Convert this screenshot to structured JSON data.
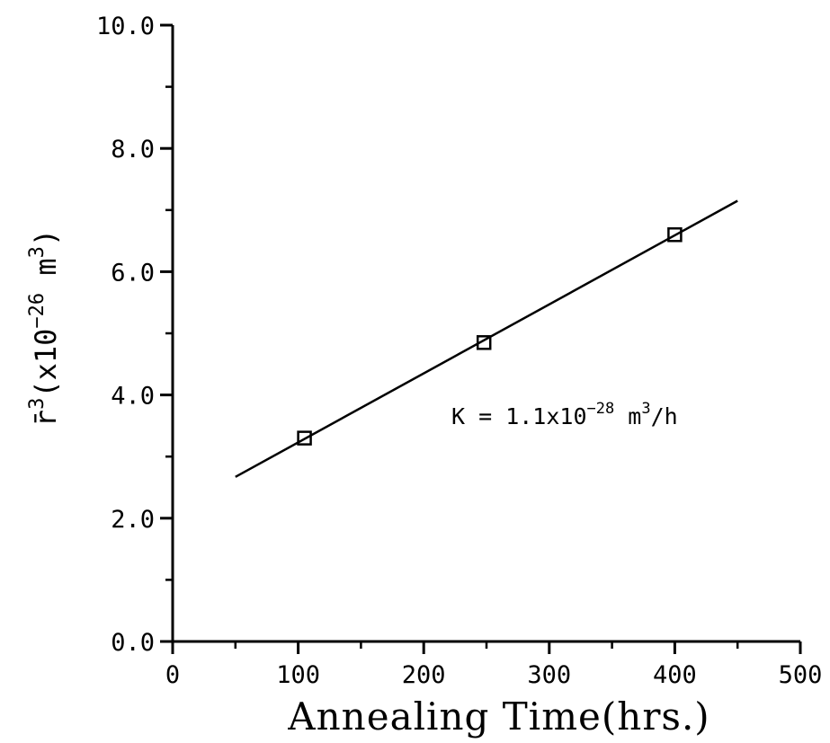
{
  "chart_data": {
    "type": "scatter",
    "xlabel": "Annealing Time(hrs.)",
    "ylabel": {
      "prefix": "r̄",
      "exp1": "3",
      "open": "(x10",
      "exp2": "−26",
      "unit": " m",
      "exp3": "3",
      "close": ")"
    },
    "xlim": [
      0,
      500
    ],
    "ylim": [
      0.0,
      10.0
    ],
    "x_ticks": [
      "0",
      "100",
      "200",
      "300",
      "400",
      "500"
    ],
    "y_ticks": [
      "0.0",
      "2.0",
      "4.0",
      "6.0",
      "8.0",
      "10.0"
    ],
    "grid": false,
    "series": [
      {
        "marker": "square",
        "x": [
          105,
          248,
          400
        ],
        "y": [
          3.3,
          4.85,
          6.6
        ]
      }
    ],
    "fit_line": {
      "x": [
        50,
        450
      ],
      "y": [
        2.67,
        7.15
      ]
    },
    "annotation": {
      "base": "K = 1.1x10",
      "exp": "−28",
      "unit": " m",
      "unit_exp": "3",
      "tail": "/h"
    }
  }
}
